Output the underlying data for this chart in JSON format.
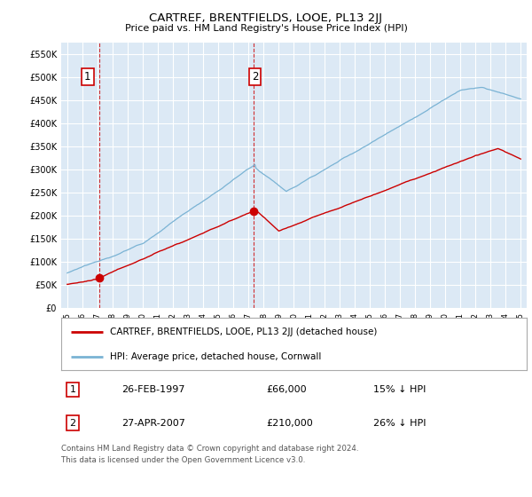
{
  "title": "CARTREF, BRENTFIELDS, LOOE, PL13 2JJ",
  "subtitle": "Price paid vs. HM Land Registry's House Price Index (HPI)",
  "bg_color": "#ffffff",
  "plot_bg_color": "#dce9f5",
  "grid_color": "#ffffff",
  "hpi_color": "#7ab3d4",
  "price_color": "#cc0000",
  "marker_color": "#cc0000",
  "ylim": [
    0,
    575000
  ],
  "yticks": [
    0,
    50000,
    100000,
    150000,
    200000,
    250000,
    300000,
    350000,
    400000,
    450000,
    500000,
    550000
  ],
  "ytick_labels": [
    "£0",
    "£50K",
    "£100K",
    "£150K",
    "£200K",
    "£250K",
    "£300K",
    "£350K",
    "£400K",
    "£450K",
    "£500K",
    "£550K"
  ],
  "sale1_year": 1997.15,
  "sale1_price": 66000,
  "sale2_year": 2007.32,
  "sale2_price": 210000,
  "legend_label1": "CARTREF, BRENTFIELDS, LOOE, PL13 2JJ (detached house)",
  "legend_label2": "HPI: Average price, detached house, Cornwall",
  "annotation1": "1",
  "annotation2": "2",
  "footer_line1": "Contains HM Land Registry data © Crown copyright and database right 2024.",
  "footer_line2": "This data is licensed under the Open Government Licence v3.0.",
  "table_row1": [
    "1",
    "26-FEB-1997",
    "£66,000",
    "15% ↓ HPI"
  ],
  "table_row2": [
    "2",
    "27-APR-2007",
    "£210,000",
    "26% ↓ HPI"
  ]
}
